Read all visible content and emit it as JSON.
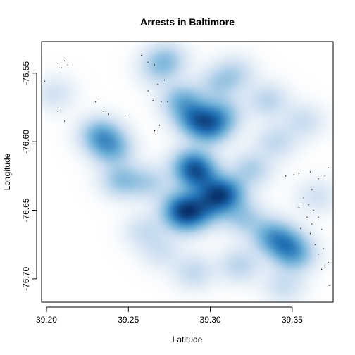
{
  "chart_data": {
    "type": "heatmap",
    "title": "Arrests in Baltimore",
    "xlabel": "Latitude",
    "ylabel": "Longitude",
    "xlim": [
      39.197,
      39.375
    ],
    "ylim": [
      -76.717,
      -76.527
    ],
    "xticks": [
      39.2,
      39.25,
      39.3,
      39.35
    ],
    "yticks": [
      -76.55,
      -76.6,
      -76.65,
      -76.7
    ],
    "xtick_labels": [
      "39.20",
      "39.25",
      "39.30",
      "39.35"
    ],
    "ytick_labels": [
      "-76.55",
      "-76.60",
      "-76.65",
      "-76.70"
    ],
    "colormap": [
      "#ffffff",
      "#c6dbef",
      "#6baed6",
      "#2171b5",
      "#08306b"
    ],
    "density_kernels": [
      {
        "x": 39.291,
        "y": -76.583,
        "w": 1.0
      },
      {
        "x": 39.3,
        "y": -76.59,
        "w": 0.9
      },
      {
        "x": 39.307,
        "y": -76.58,
        "w": 0.6
      },
      {
        "x": 39.283,
        "y": -76.57,
        "w": 0.7
      },
      {
        "x": 39.289,
        "y": -76.617,
        "w": 1.0
      },
      {
        "x": 39.293,
        "y": -76.625,
        "w": 0.9
      },
      {
        "x": 39.304,
        "y": -76.64,
        "w": 1.0
      },
      {
        "x": 39.31,
        "y": -76.637,
        "w": 0.8
      },
      {
        "x": 39.283,
        "y": -76.648,
        "w": 1.0
      },
      {
        "x": 39.285,
        "y": -76.655,
        "w": 0.8
      },
      {
        "x": 39.296,
        "y": -76.65,
        "w": 0.6
      },
      {
        "x": 39.32,
        "y": -76.655,
        "w": 0.5
      },
      {
        "x": 39.346,
        "y": -76.675,
        "w": 0.8
      },
      {
        "x": 39.337,
        "y": -76.668,
        "w": 0.7
      },
      {
        "x": 39.352,
        "y": -76.683,
        "w": 0.6
      },
      {
        "x": 39.233,
        "y": -76.595,
        "w": 0.8
      },
      {
        "x": 39.24,
        "y": -76.605,
        "w": 0.7
      },
      {
        "x": 39.246,
        "y": -76.628,
        "w": 0.6
      },
      {
        "x": 39.263,
        "y": -76.63,
        "w": 0.4
      },
      {
        "x": 39.273,
        "y": -76.54,
        "w": 0.5
      },
      {
        "x": 39.268,
        "y": -76.548,
        "w": 0.3
      },
      {
        "x": 39.305,
        "y": -76.558,
        "w": 0.4
      },
      {
        "x": 39.315,
        "y": -76.55,
        "w": 0.35
      },
      {
        "x": 39.335,
        "y": -76.57,
        "w": 0.4
      },
      {
        "x": 39.34,
        "y": -76.6,
        "w": 0.35
      },
      {
        "x": 39.357,
        "y": -76.585,
        "w": 0.3
      },
      {
        "x": 39.325,
        "y": -76.62,
        "w": 0.45
      },
      {
        "x": 39.318,
        "y": -76.69,
        "w": 0.4
      },
      {
        "x": 39.29,
        "y": -76.695,
        "w": 0.35
      },
      {
        "x": 39.345,
        "y": -76.705,
        "w": 0.3
      },
      {
        "x": 39.205,
        "y": -76.565,
        "w": 0.25
      },
      {
        "x": 39.26,
        "y": -76.665,
        "w": 0.3
      },
      {
        "x": 39.27,
        "y": -76.68,
        "w": 0.25
      },
      {
        "x": 39.365,
        "y": -76.64,
        "w": 0.25
      }
    ],
    "points": [
      [
        39.207,
        -76.543
      ],
      [
        39.209,
        -76.546
      ],
      [
        39.211,
        -76.541
      ],
      [
        39.213,
        -76.544
      ],
      [
        39.199,
        -76.556
      ],
      [
        39.207,
        -76.578
      ],
      [
        39.211,
        -76.585
      ],
      [
        39.23,
        -76.571
      ],
      [
        39.232,
        -76.569
      ],
      [
        39.235,
        -76.578
      ],
      [
        39.238,
        -76.58
      ],
      [
        39.248,
        -76.581
      ],
      [
        39.258,
        -76.537
      ],
      [
        39.262,
        -76.542
      ],
      [
        39.266,
        -76.544
      ],
      [
        39.262,
        -76.563
      ],
      [
        39.268,
        -76.558
      ],
      [
        39.272,
        -76.555
      ],
      [
        39.265,
        -76.57
      ],
      [
        39.27,
        -76.571
      ],
      [
        39.274,
        -76.571
      ],
      [
        39.266,
        -76.592
      ],
      [
        39.269,
        -76.588
      ],
      [
        39.351,
        -76.624
      ],
      [
        39.354,
        -76.623
      ],
      [
        39.361,
        -76.622
      ],
      [
        39.346,
        -76.625
      ],
      [
        39.366,
        -76.627
      ],
      [
        39.37,
        -76.625
      ],
      [
        39.372,
        -76.619
      ],
      [
        39.362,
        -76.635
      ],
      [
        39.357,
        -76.641
      ],
      [
        39.36,
        -76.646
      ],
      [
        39.363,
        -76.65
      ],
      [
        39.366,
        -76.655
      ],
      [
        39.359,
        -76.655
      ],
      [
        39.354,
        -76.648
      ],
      [
        39.362,
        -76.66
      ],
      [
        39.368,
        -76.664
      ],
      [
        39.355,
        -76.663
      ],
      [
        39.361,
        -76.667
      ],
      [
        39.364,
        -76.675
      ],
      [
        39.369,
        -76.678
      ],
      [
        39.366,
        -76.682
      ],
      [
        39.37,
        -76.69
      ],
      [
        39.372,
        -76.688
      ],
      [
        39.368,
        -76.693
      ],
      [
        39.373,
        -76.705
      ]
    ]
  }
}
